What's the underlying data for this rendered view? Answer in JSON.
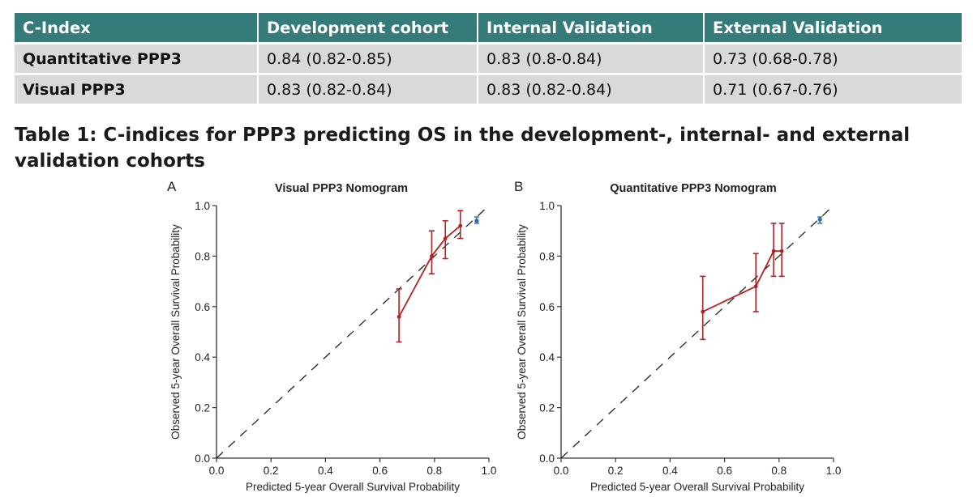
{
  "table": {
    "headers": [
      "C-Index",
      "Development cohort",
      "Internal Validation",
      "External Validation"
    ],
    "rows": [
      [
        "Quantitative PPP3",
        "0.84 (0.82-0.85)",
        "0.83 (0.8-0.84)",
        "0.73 (0.68-0.78)"
      ],
      [
        "Visual PPP3",
        "0.83 (0.82-0.84)",
        "0.83 (0.82-0.84)",
        "0.71 (0.67-0.76)"
      ]
    ]
  },
  "caption": "Table 1: C-indices for PPP3 predicting OS in the development-, internal- and external validation cohorts",
  "colors": {
    "header_bg": "#347b7a",
    "cell_bg": "#d9d9d9",
    "curve": "#b22222",
    "reference": "#2a6ebb"
  },
  "chart_data": [
    {
      "type": "line",
      "panel_label": "A",
      "title": "Visual PPP3 Nomogram",
      "xlabel": "Predicted 5-year Overall Survival Probability",
      "ylabel": "Observed 5-year Overall Survival Probability",
      "xlim": [
        0,
        1
      ],
      "ylim": [
        0,
        1
      ],
      "xticks": [
        "0.0",
        "0.2",
        "0.4",
        "0.6",
        "0.8",
        "1.0"
      ],
      "yticks": [
        "0.0",
        "0.2",
        "0.4",
        "0.6",
        "0.8",
        "1.0"
      ],
      "diagonal": true,
      "series": [
        {
          "x": [
            0.67,
            0.79,
            0.84,
            0.895
          ],
          "y": [
            0.56,
            0.8,
            0.87,
            0.92
          ],
          "lower": [
            0.46,
            0.73,
            0.79,
            0.87
          ],
          "upper": [
            0.67,
            0.9,
            0.94,
            0.98
          ]
        }
      ],
      "reference_point": {
        "x": 0.955,
        "y": 0.94,
        "lower": 0.93,
        "upper": 0.955
      }
    },
    {
      "type": "line",
      "panel_label": "B",
      "title": "Quantitative PPP3 Nomogram",
      "xlabel": "Predicted 5-year Overall Survival Probability",
      "ylabel": "Observed 5-year Overall Survival Probability",
      "xlim": [
        0,
        1
      ],
      "ylim": [
        0,
        1
      ],
      "xticks": [
        "0.0",
        "0.2",
        "0.4",
        "0.6",
        "0.8",
        "1.0"
      ],
      "yticks": [
        "0.0",
        "0.2",
        "0.4",
        "0.6",
        "0.8",
        "1.0"
      ],
      "diagonal": true,
      "series": [
        {
          "x": [
            0.52,
            0.715,
            0.78,
            0.81
          ],
          "y": [
            0.58,
            0.68,
            0.82,
            0.82
          ],
          "lower": [
            0.47,
            0.58,
            0.72,
            0.72
          ],
          "upper": [
            0.72,
            0.81,
            0.93,
            0.93
          ]
        }
      ],
      "reference_point": {
        "x": 0.95,
        "y": 0.945,
        "lower": 0.93,
        "upper": 0.955
      }
    }
  ]
}
